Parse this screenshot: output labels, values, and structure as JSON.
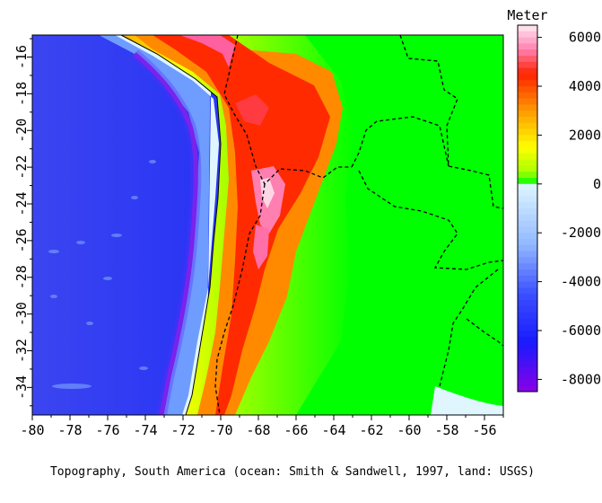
{
  "map": {
    "caption": "Topography, South America  (ocean: Smith & Sandwell, 1997, land: USGS)",
    "longitude_range": [
      -80,
      -55
    ],
    "latitude_range": [
      -35.5,
      -14.8
    ],
    "x_tick_labels": [
      "-80",
      "-78",
      "-76",
      "-74",
      "-72",
      "-70",
      "-68",
      "-66",
      "-64",
      "-62",
      "-60",
      "-58",
      "-56"
    ],
    "x_tick_values": [
      -80,
      -78,
      -76,
      -74,
      -72,
      -70,
      -68,
      -66,
      -64,
      -62,
      -60,
      -58,
      -56
    ],
    "y_tick_labels": [
      "-16",
      "-18",
      "-20",
      "-22",
      "-24",
      "-26",
      "-28",
      "-30",
      "-32",
      "-34"
    ],
    "y_tick_values": [
      -16,
      -18,
      -20,
      -22,
      -24,
      -26,
      -28,
      -30,
      -32,
      -34
    ],
    "features": [
      "coastline",
      "peru-chile-trench",
      "andes-cordillera",
      "national-borders-dashed"
    ]
  },
  "colorbar": {
    "title": "Meter",
    "range": [
      -8500,
      6500
    ],
    "tick_labels": [
      "6000",
      "4000",
      "2000",
      "0",
      "-2000",
      "-4000",
      "-6000",
      "-8000"
    ],
    "tick_values": [
      6000,
      4000,
      2000,
      0,
      -2000,
      -4000,
      -6000,
      -8000
    ],
    "colors": {
      "deep_trench": "#8a00e6",
      "deep_ocean": "#1a1aff",
      "mid_ocean": "#3b4fff",
      "shallow_ocean": "#90b8ff",
      "shelf": "#dff6ff",
      "lowland": "#00ff00",
      "low_hills": "#aaff00",
      "yellow": "#ffff00",
      "orange": "#ff9900",
      "red": "#ff2200",
      "pink": "#ff80b0",
      "peak": "#ffeaf2"
    }
  }
}
